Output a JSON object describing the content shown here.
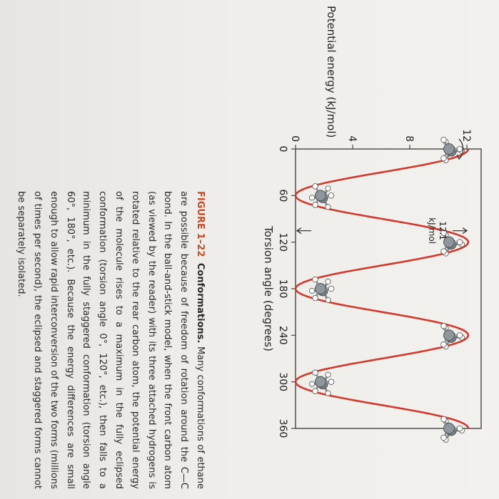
{
  "figure": {
    "label": "FIGURE 1–22",
    "title": "Conformations.",
    "caption": "Many conformations of ethane are possible because of freedom of rotation around the C—C bond. In the ball-and-stick model, when the front carbon atom (as viewed by the reader) with its three attached hydrogens is rotated relative to the rear carbon atom, the potential energy of the molecule rises to a maximum in the fully eclipsed conformation (torsion angle 0°, 120°, etc.), then falls to a minimum in the fully staggered conformation (torsion angle 60°, 180°, etc.). Because the energy differences are small enough to allow rapid interconversion of the two forms (millions of times per second), the eclipsed and staggered forms cannot be separately isolated."
  },
  "chart_data": {
    "type": "line",
    "xlabel": "Torsion angle (degrees)",
    "ylabel": "Potential energy (kJ/mol)",
    "x_ticks": [
      0,
      60,
      120,
      180,
      240,
      300,
      360
    ],
    "y_ticks": [
      0,
      4,
      8,
      12
    ],
    "xlim": [
      0,
      360
    ],
    "ylim": [
      0,
      13
    ],
    "annotation": {
      "text_value": "12.1",
      "text_unit": "kJ/mol",
      "x": 120,
      "y_low": 0,
      "y_high": 12.1
    },
    "curve": {
      "color": "#d0392b",
      "points": [
        [
          0,
          12.1
        ],
        [
          30,
          6.05
        ],
        [
          60,
          0
        ],
        [
          90,
          6.05
        ],
        [
          120,
          12.1
        ],
        [
          150,
          6.05
        ],
        [
          180,
          0
        ],
        [
          210,
          6.05
        ],
        [
          240,
          12.1
        ],
        [
          270,
          6.05
        ],
        [
          300,
          0
        ],
        [
          330,
          6.05
        ],
        [
          360,
          12.1
        ]
      ]
    },
    "conformations": [
      {
        "name": "eclipsed",
        "x": 0
      },
      {
        "name": "staggered",
        "x": 60
      },
      {
        "name": "eclipsed",
        "x": 120
      },
      {
        "name": "staggered",
        "x": 180
      },
      {
        "name": "eclipsed",
        "x": 240
      },
      {
        "name": "staggered",
        "x": 300
      },
      {
        "name": "eclipsed",
        "x": 360
      }
    ],
    "grid": false
  }
}
